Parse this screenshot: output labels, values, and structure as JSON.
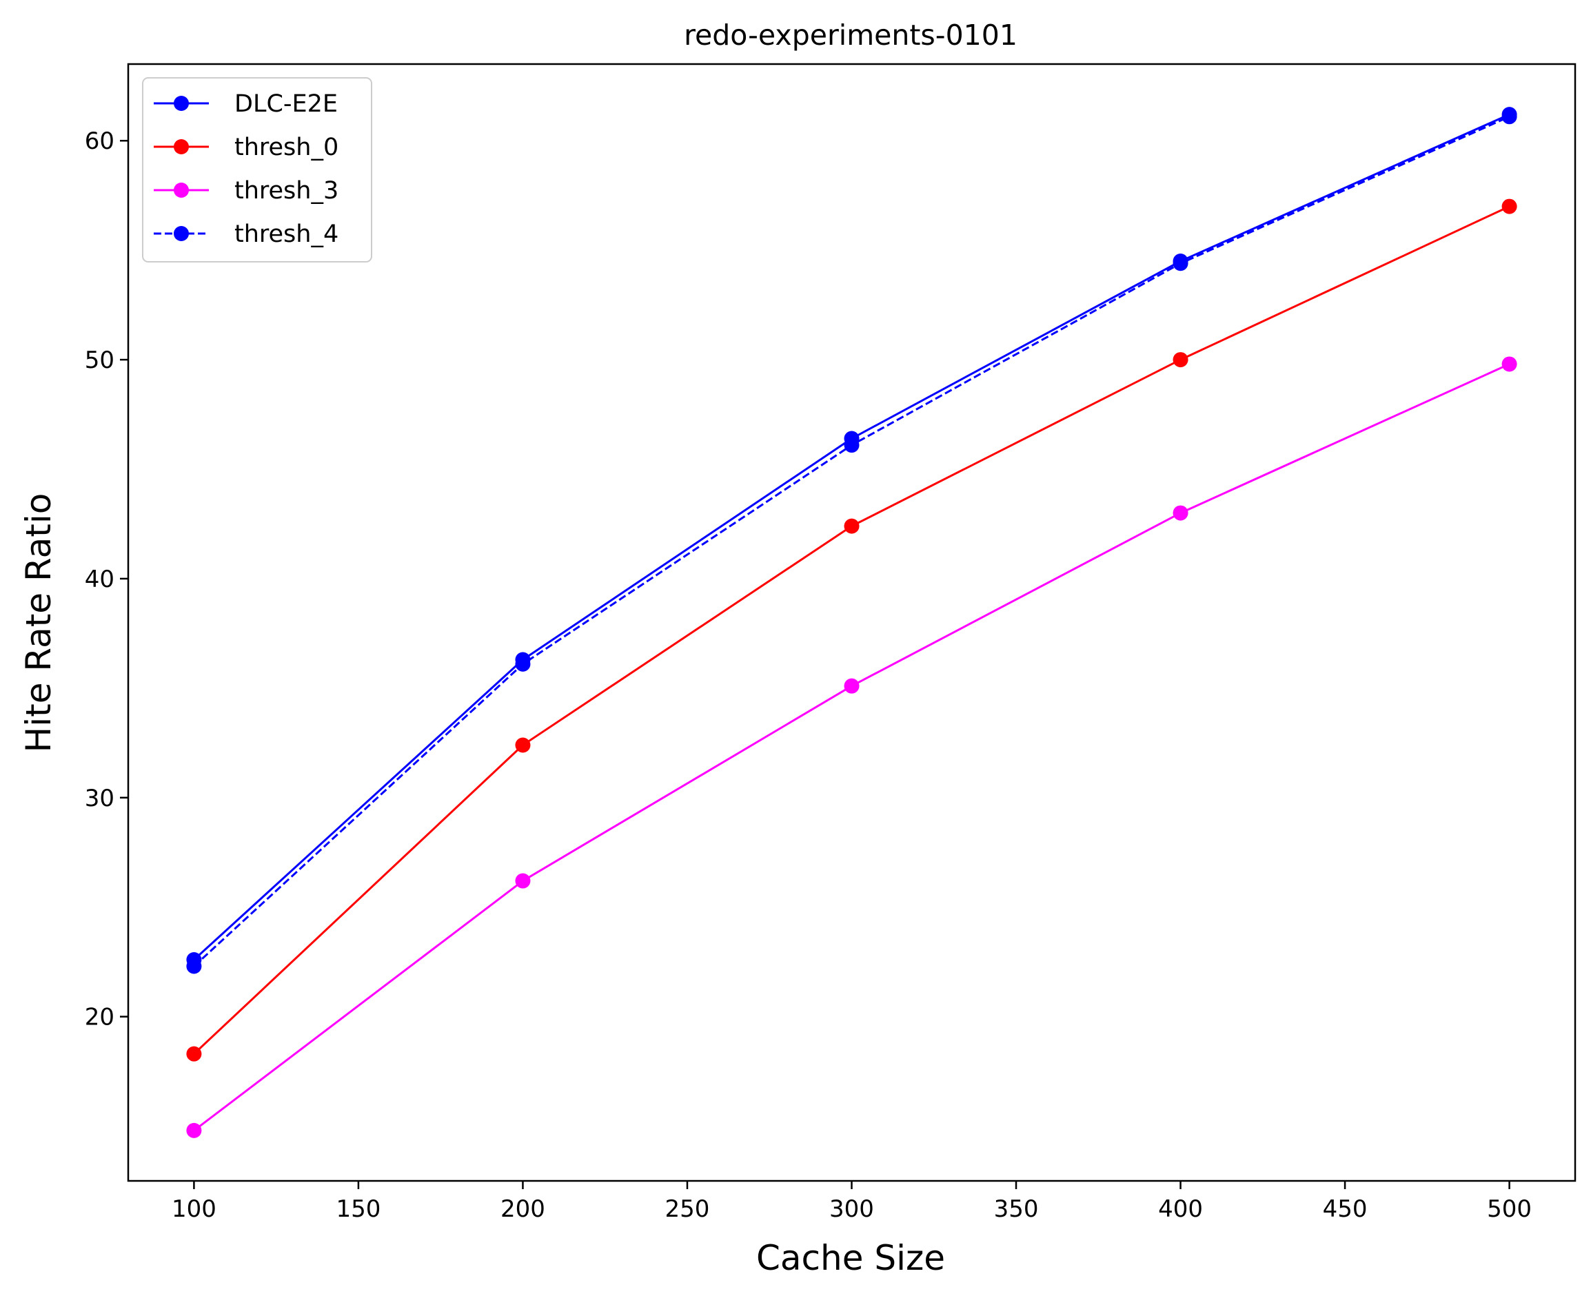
{
  "chart_data": {
    "type": "line",
    "title": "redo-experiments-0101",
    "xlabel": "Cache Size",
    "ylabel": "Hite Rate Ratio",
    "x": [
      100,
      200,
      300,
      400,
      500
    ],
    "xlim": [
      80,
      520
    ],
    "ylim": [
      12.5,
      63.5
    ],
    "xticks": [
      100,
      150,
      200,
      250,
      300,
      350,
      400,
      450,
      500
    ],
    "yticks": [
      20,
      30,
      40,
      50,
      60
    ],
    "grid": false,
    "legend_position": "upper-left",
    "series": [
      {
        "name": "DLC-E2E",
        "color": "#0000ff",
        "linestyle": "solid",
        "values": [
          22.6,
          36.3,
          46.4,
          54.5,
          61.2
        ]
      },
      {
        "name": "thresh_0",
        "color": "#ff0000",
        "linestyle": "solid",
        "values": [
          18.3,
          32.4,
          42.4,
          50.0,
          57.0
        ]
      },
      {
        "name": "thresh_3",
        "color": "#ff00ff",
        "linestyle": "solid",
        "values": [
          14.8,
          26.2,
          35.1,
          43.0,
          49.8
        ]
      },
      {
        "name": "thresh_4",
        "color": "#0000ff",
        "linestyle": "dashed",
        "values": [
          22.3,
          36.1,
          46.1,
          54.4,
          61.1
        ]
      }
    ]
  }
}
